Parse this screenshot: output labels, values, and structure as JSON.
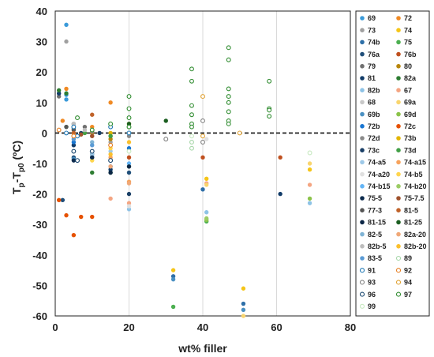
{
  "chart_data": {
    "type": "scatter",
    "xlabel": "wt% filler",
    "ylabel_main": "T",
    "ylabel_sub1": "p",
    "ylabel_mid": "-T",
    "ylabel_sub2": "p0",
    "ylabel_unit": " (ºC)",
    "xlim": [
      0,
      80
    ],
    "ylim": [
      -60,
      40
    ],
    "xticks": [
      0,
      20,
      40,
      60,
      80
    ],
    "yticks": [
      -60,
      -50,
      -40,
      -30,
      -20,
      -10,
      0,
      10,
      20,
      30,
      40
    ],
    "grid": "vertical",
    "reference_line_y": 0,
    "legend_position": "right",
    "series": [
      {
        "name": "69",
        "color": "#3a9ad9",
        "marker": "filled",
        "points": [
          [
            3,
            35.5
          ],
          [
            3,
            12.5
          ],
          [
            3,
            11
          ]
        ]
      },
      {
        "name": "72",
        "color": "#f08a24",
        "marker": "filled",
        "points": [
          [
            2,
            4
          ],
          [
            3,
            14.5
          ],
          [
            10,
            2
          ],
          [
            15,
            10
          ]
        ]
      },
      {
        "name": "73",
        "color": "#a0a0a0",
        "marker": "filled",
        "points": [
          [
            3,
            30
          ],
          [
            5,
            2
          ],
          [
            15,
            -3
          ]
        ]
      },
      {
        "name": "74",
        "color": "#f5c518",
        "marker": "filled",
        "points": [
          [
            32,
            -45
          ],
          [
            41,
            -15
          ],
          [
            51,
            -51
          ],
          [
            69,
            -12
          ]
        ]
      },
      {
        "name": "74b",
        "color": "#2e6fa8",
        "marker": "filled",
        "points": [
          [
            32,
            -47
          ],
          [
            51,
            -56
          ],
          [
            40,
            -18.5
          ]
        ]
      },
      {
        "name": "75",
        "color": "#4caf50",
        "marker": "filled",
        "points": [
          [
            32,
            -57
          ],
          [
            20,
            2
          ],
          [
            10,
            -7
          ],
          [
            41,
            -29
          ]
        ]
      },
      {
        "name": "76a",
        "color": "#1f4e79",
        "marker": "filled",
        "points": [
          [
            2,
            -22
          ],
          [
            5,
            -8
          ],
          [
            10,
            -7
          ],
          [
            20,
            -13
          ]
        ]
      },
      {
        "name": "76b",
        "color": "#c0501f",
        "marker": "filled",
        "points": [
          [
            20,
            -8
          ],
          [
            40,
            -8
          ],
          [
            61,
            -8
          ]
        ]
      },
      {
        "name": "79",
        "color": "#707070",
        "marker": "filled",
        "points": [
          [
            1,
            12
          ],
          [
            5,
            3
          ],
          [
            8,
            2
          ],
          [
            15,
            -1
          ]
        ]
      },
      {
        "name": "80",
        "color": "#b8860b",
        "marker": "filled",
        "points": [
          [
            8,
            0
          ],
          [
            10,
            0
          ],
          [
            15,
            -2
          ]
        ]
      },
      {
        "name": "81",
        "color": "#123c69",
        "marker": "filled",
        "points": [
          [
            1,
            13
          ],
          [
            5,
            -4
          ],
          [
            15,
            -12
          ],
          [
            61,
            -20
          ]
        ]
      },
      {
        "name": "82a",
        "color": "#2e7d32",
        "marker": "filled",
        "points": [
          [
            1,
            14
          ],
          [
            3,
            13
          ],
          [
            10,
            -13
          ],
          [
            15,
            -13
          ]
        ]
      },
      {
        "name": "82b",
        "color": "#8ec3e6",
        "marker": "filled",
        "points": [
          [
            20,
            -25
          ],
          [
            41,
            -26
          ],
          [
            69,
            -23
          ]
        ]
      },
      {
        "name": "67",
        "color": "#f4a582",
        "marker": "filled",
        "points": [
          [
            15,
            -21.5
          ],
          [
            20,
            -23
          ],
          [
            41,
            -16.5
          ],
          [
            69,
            -17
          ]
        ]
      },
      {
        "name": "68",
        "color": "#c8c8c8",
        "marker": "filled",
        "points": [
          [
            5,
            1
          ],
          [
            10,
            -1
          ],
          [
            20,
            -16
          ]
        ]
      },
      {
        "name": "69a",
        "color": "#f9d56e",
        "marker": "filled",
        "points": [
          [
            41,
            -17
          ],
          [
            51,
            -60
          ],
          [
            69,
            -10
          ]
        ]
      },
      {
        "name": "69b",
        "color": "#4a90c2",
        "marker": "filled",
        "points": [
          [
            32,
            -48
          ],
          [
            51,
            -58
          ],
          [
            5,
            -8.5
          ]
        ]
      },
      {
        "name": "69d",
        "color": "#8bc34a",
        "marker": "filled",
        "points": [
          [
            41,
            -28.5
          ],
          [
            69,
            -21.5
          ],
          [
            15,
            -9
          ]
        ]
      },
      {
        "name": "72b",
        "color": "#1976d2",
        "marker": "filled",
        "points": [
          [
            5,
            -3
          ],
          [
            10,
            -8
          ],
          [
            20,
            -5
          ]
        ]
      },
      {
        "name": "72c",
        "color": "#e65100",
        "marker": "filled",
        "points": [
          [
            3,
            -27
          ],
          [
            5,
            -33.5
          ],
          [
            7,
            -27.5
          ],
          [
            10,
            -27.5
          ],
          [
            1,
            -22
          ]
        ]
      },
      {
        "name": "72d",
        "color": "#8a8a8a",
        "marker": "filled",
        "points": [
          [
            5,
            1.5
          ],
          [
            10,
            0.5
          ],
          [
            15,
            -4
          ],
          [
            20,
            -1
          ]
        ]
      },
      {
        "name": "73b",
        "color": "#e3b505",
        "marker": "filled",
        "points": [
          [
            10,
            1
          ],
          [
            15,
            0
          ],
          [
            20,
            3
          ]
        ]
      },
      {
        "name": "73c",
        "color": "#1a3f66",
        "marker": "filled",
        "points": [
          [
            7,
            0
          ],
          [
            12,
            0
          ],
          [
            15,
            -11
          ],
          [
            20,
            -20
          ]
        ]
      },
      {
        "name": "73d",
        "color": "#43a047",
        "marker": "filled",
        "points": [
          [
            3,
            2
          ],
          [
            8,
            0
          ],
          [
            15,
            -1
          ],
          [
            20,
            0
          ]
        ]
      },
      {
        "name": "74-a5",
        "color": "#9ec9e8",
        "marker": "filled",
        "points": [
          [
            10,
            -7
          ],
          [
            15,
            -6
          ]
        ]
      },
      {
        "name": "74-a15",
        "color": "#f7a35c",
        "marker": "filled",
        "points": [
          [
            15,
            -8
          ],
          [
            20,
            -16
          ]
        ]
      },
      {
        "name": "74-a20",
        "color": "#e0e0e0",
        "marker": "filled",
        "points": [
          [
            20,
            -24
          ],
          [
            41,
            -2
          ]
        ]
      },
      {
        "name": "74-b5",
        "color": "#ffd54f",
        "marker": "filled",
        "points": [
          [
            10,
            -9
          ],
          [
            15,
            -5
          ]
        ]
      },
      {
        "name": "74-b15",
        "color": "#64b5f6",
        "marker": "filled",
        "points": [
          [
            15,
            -9
          ],
          [
            20,
            -10
          ]
        ]
      },
      {
        "name": "74-b20",
        "color": "#9ccc65",
        "marker": "filled",
        "points": [
          [
            20,
            -11
          ],
          [
            41,
            -28
          ]
        ]
      },
      {
        "name": "75-5",
        "color": "#0d2b4d",
        "marker": "filled",
        "points": [
          [
            5,
            -9
          ],
          [
            10,
            -8
          ]
        ]
      },
      {
        "name": "75-7.5",
        "color": "#a0522d",
        "marker": "filled",
        "points": [
          [
            7,
            -0.5
          ],
          [
            10,
            -1
          ]
        ]
      },
      {
        "name": "77-3",
        "color": "#555555",
        "marker": "filled",
        "points": [
          [
            3,
            2
          ],
          [
            5,
            1
          ]
        ]
      },
      {
        "name": "81-5",
        "color": "#c0632a",
        "marker": "filled",
        "points": [
          [
            5,
            0
          ],
          [
            10,
            6
          ]
        ]
      },
      {
        "name": "81-15",
        "color": "#0b2545",
        "marker": "filled",
        "points": [
          [
            15,
            -13
          ],
          [
            20,
            -11
          ]
        ]
      },
      {
        "name": "81-25",
        "color": "#1b5e20",
        "marker": "filled",
        "points": [
          [
            20,
            3
          ],
          [
            30,
            4
          ]
        ]
      },
      {
        "name": "82-5",
        "color": "#7fb3d5",
        "marker": "filled",
        "points": [
          [
            5,
            -1
          ],
          [
            10,
            -3
          ]
        ]
      },
      {
        "name": "82a-20",
        "color": "#f0a878",
        "marker": "filled",
        "points": [
          [
            20,
            -16.5
          ],
          [
            15,
            -11
          ]
        ]
      },
      {
        "name": "82b-5",
        "color": "#bdbdbd",
        "marker": "filled",
        "points": [
          [
            5,
            3
          ],
          [
            8,
            1
          ]
        ]
      },
      {
        "name": "82b-20",
        "color": "#fbc02d",
        "marker": "filled",
        "points": [
          [
            20,
            -3
          ],
          [
            15,
            -7
          ]
        ]
      },
      {
        "name": "83-5",
        "color": "#5b9bd5",
        "marker": "filled",
        "points": [
          [
            5,
            -2
          ],
          [
            10,
            -4
          ]
        ]
      },
      {
        "name": "89",
        "color": "#a5d6a7",
        "marker": "open",
        "points": [
          [
            37,
            -5
          ],
          [
            37,
            -3
          ]
        ]
      },
      {
        "name": "91",
        "color": "#1f77b4",
        "marker": "open",
        "points": [
          [
            3,
            0
          ],
          [
            5,
            2
          ],
          [
            6,
            -1
          ],
          [
            15,
            2
          ],
          [
            20,
            0
          ]
        ]
      },
      {
        "name": "92",
        "color": "#e67e22",
        "marker": "open",
        "points": [
          [
            1,
            1
          ],
          [
            5,
            -1
          ],
          [
            15,
            -4
          ]
        ]
      },
      {
        "name": "93",
        "color": "#808080",
        "marker": "open",
        "points": [
          [
            30,
            -2
          ],
          [
            40,
            4
          ],
          [
            40,
            -3
          ]
        ]
      },
      {
        "name": "94",
        "color": "#e0a030",
        "marker": "open",
        "points": [
          [
            40,
            12
          ],
          [
            40,
            -1
          ],
          [
            50,
            0
          ]
        ]
      },
      {
        "name": "96",
        "color": "#17456e",
        "marker": "open",
        "points": [
          [
            5,
            -6
          ],
          [
            6,
            -9
          ],
          [
            10,
            -6
          ],
          [
            15,
            -9
          ]
        ]
      },
      {
        "name": "97",
        "color": "#2e8b2e",
        "marker": "open",
        "points": [
          [
            37,
            21
          ],
          [
            37,
            17
          ],
          [
            37,
            9
          ],
          [
            37,
            6
          ],
          [
            37,
            3
          ],
          [
            37,
            2
          ],
          [
            47,
            28
          ],
          [
            47,
            24
          ],
          [
            47,
            14.5
          ],
          [
            47,
            12
          ],
          [
            47,
            10
          ],
          [
            47,
            7
          ],
          [
            47,
            4
          ],
          [
            47,
            3
          ],
          [
            58,
            17
          ],
          [
            58,
            8
          ],
          [
            58,
            7.5
          ],
          [
            58,
            5.5
          ],
          [
            20,
            12
          ],
          [
            20,
            8
          ],
          [
            20,
            5
          ],
          [
            20,
            2
          ],
          [
            15,
            3
          ],
          [
            10,
            1
          ],
          [
            6,
            5
          ]
        ]
      },
      {
        "name": "99",
        "color": "#c7e9c0",
        "marker": "open",
        "points": [
          [
            69,
            -6.5
          ],
          [
            37,
            -1
          ],
          [
            20,
            -6
          ]
        ]
      }
    ]
  }
}
